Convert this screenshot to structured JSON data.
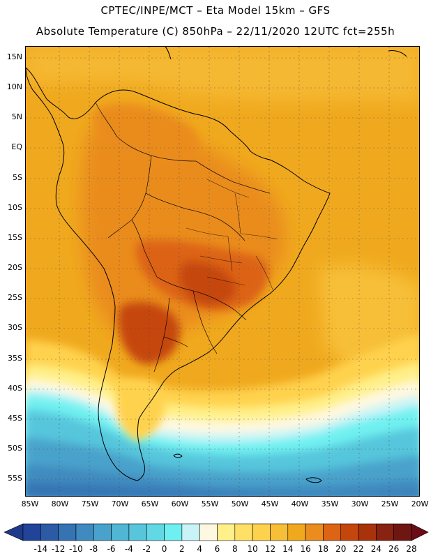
{
  "header": {
    "title_line1": "CPTEC/INPE/MCT –  Eta Model 15km – GFS",
    "title_line2": "Absolute Temperature (C) 850hPa – 22/11/2020 12UTC fct=255h"
  },
  "map": {
    "region": "South America",
    "lat_labels": [
      "15N",
      "10N",
      "5N",
      "EQ",
      "5S",
      "10S",
      "15S",
      "20S",
      "25S",
      "30S",
      "35S",
      "40S",
      "45S",
      "50S",
      "55S"
    ],
    "lon_labels": [
      "85W",
      "80W",
      "75W",
      "70W",
      "65W",
      "60W",
      "55W",
      "50W",
      "45W",
      "40W",
      "35W",
      "30W",
      "25W",
      "20W"
    ]
  },
  "colorbar": {
    "labels": [
      "-14",
      "-12",
      "-10",
      "-8",
      "-6",
      "-4",
      "-2",
      "0",
      "2",
      "4",
      "6",
      "8",
      "10",
      "12",
      "14",
      "16",
      "18",
      "20",
      "22",
      "24",
      "26",
      "28"
    ],
    "colors": [
      "#21449a",
      "#2c5aa5",
      "#3573b3",
      "#3f8abf",
      "#48a2cb",
      "#50b6d4",
      "#57c6dc",
      "#62d8e5",
      "#6ff0f0",
      "#c8f4f8",
      "#fff8e1",
      "#fff08a",
      "#ffe066",
      "#ffd24d",
      "#f7bf38",
      "#f0a91e",
      "#ea8c1e",
      "#dc6414",
      "#c5460c",
      "#a8320a",
      "#872310",
      "#6e1612"
    ],
    "under_color": "#1f3a8a",
    "over_color": "#6b0b16"
  }
}
